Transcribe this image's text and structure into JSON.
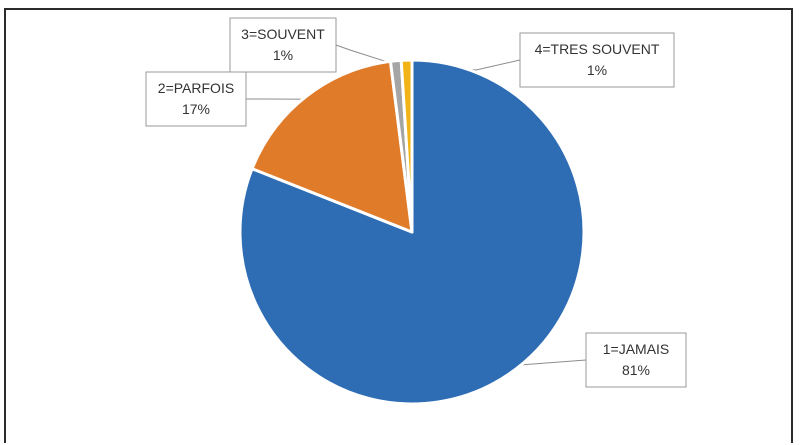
{
  "chart_data": {
    "type": "pie",
    "title": "",
    "slices": [
      {
        "label": "1=JAMAIS",
        "value": 81,
        "percent_label": "81%",
        "color": "#2E6DB4"
      },
      {
        "label": "2=PARFOIS",
        "value": 17,
        "percent_label": "17%",
        "color": "#E07B2A"
      },
      {
        "label": "3=SOUVENT",
        "value": 1,
        "percent_label": "1%",
        "color": "#A5A5A5"
      },
      {
        "label": "4=TRES SOUVENT",
        "value": 1,
        "percent_label": "1%",
        "color": "#F2B316"
      }
    ],
    "legend": "none",
    "data_labels": "callouts"
  }
}
